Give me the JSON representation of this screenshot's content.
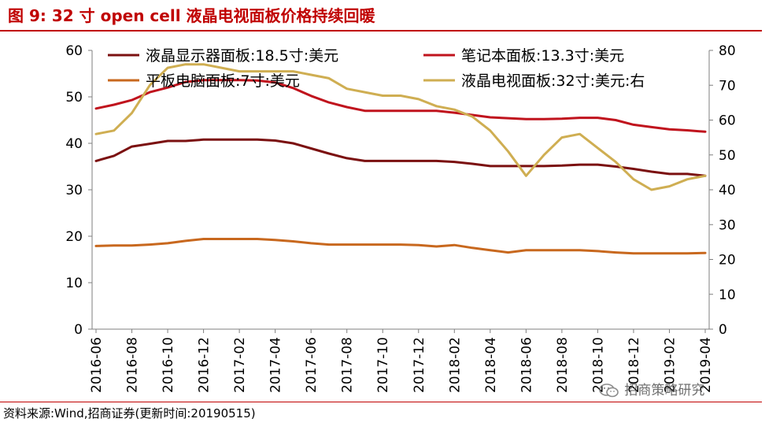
{
  "figure": {
    "title": "图 9:  32 寸 open cell 液晶电视面板价格持续回暖",
    "source": "资料来源:Wind,招商证券(更新时间:20190515)",
    "watermark": "招商策略研究",
    "watermark_icon": "wechat-icon"
  },
  "colors": {
    "title_red": "#c00000",
    "s1": "#7b1010",
    "s2": "#c0131d",
    "s3": "#c8681e",
    "s4": "#cfae52"
  },
  "chart_data": {
    "type": "line",
    "x": [
      "2016-06",
      "2016-07",
      "2016-08",
      "2016-09",
      "2016-10",
      "2016-11",
      "2016-12",
      "2017-01",
      "2017-02",
      "2017-03",
      "2017-04",
      "2017-05",
      "2017-06",
      "2017-07",
      "2017-08",
      "2017-09",
      "2017-10",
      "2017-11",
      "2017-12",
      "2018-01",
      "2018-02",
      "2018-03",
      "2018-04",
      "2018-05",
      "2018-06",
      "2018-07",
      "2018-08",
      "2018-09",
      "2018-10",
      "2018-11",
      "2018-12",
      "2019-01",
      "2019-02",
      "2019-03",
      "2019-04"
    ],
    "xticks": [
      "2016-06",
      "2016-08",
      "2016-10",
      "2016-12",
      "2017-02",
      "2017-04",
      "2017-06",
      "2017-08",
      "2017-10",
      "2017-12",
      "2018-02",
      "2018-04",
      "2018-06",
      "2018-08",
      "2018-10",
      "2018-12",
      "2019-02",
      "2019-04"
    ],
    "ylim_left": [
      0,
      60
    ],
    "yticks_left": [
      0,
      10,
      20,
      30,
      40,
      50,
      60
    ],
    "ylim_right": [
      0,
      80
    ],
    "yticks_right": [
      0,
      10,
      20,
      30,
      40,
      50,
      60,
      70,
      80
    ],
    "grid": false,
    "legend_position": "top",
    "series": [
      {
        "name": "液晶显示器面板:18.5寸:美元",
        "axis": "left",
        "color": "#7b1010",
        "values": [
          36.2,
          37.3,
          39.3,
          39.9,
          40.5,
          40.5,
          40.8,
          40.8,
          40.8,
          40.8,
          40.6,
          40.0,
          38.9,
          37.8,
          36.8,
          36.2,
          36.2,
          36.2,
          36.2,
          36.2,
          36.0,
          35.6,
          35.1,
          35.1,
          35.1,
          35.1,
          35.2,
          35.4,
          35.4,
          35.0,
          34.5,
          33.9,
          33.4,
          33.4,
          33.0
        ]
      },
      {
        "name": "笔记本面板:13.3寸:美元",
        "axis": "left",
        "color": "#c0131d",
        "values": [
          47.5,
          48.3,
          49.3,
          51.0,
          52.0,
          53.2,
          53.6,
          53.6,
          53.6,
          53.5,
          53.1,
          51.9,
          50.2,
          48.8,
          47.8,
          47.0,
          47.0,
          47.0,
          47.0,
          47.0,
          46.6,
          46.1,
          45.6,
          45.4,
          45.2,
          45.2,
          45.3,
          45.5,
          45.5,
          45.0,
          44.0,
          43.5,
          43.0,
          42.8,
          42.5
        ]
      },
      {
        "name": "平板电脑面板:7寸:美元",
        "axis": "left",
        "color": "#c8681e",
        "values": [
          17.9,
          18.0,
          18.0,
          18.2,
          18.5,
          19.0,
          19.4,
          19.4,
          19.4,
          19.4,
          19.2,
          18.9,
          18.5,
          18.2,
          18.2,
          18.2,
          18.2,
          18.2,
          18.1,
          17.8,
          18.1,
          17.5,
          17.0,
          16.5,
          17.0,
          17.0,
          17.0,
          17.0,
          16.8,
          16.5,
          16.3,
          16.3,
          16.3,
          16.3,
          16.4
        ]
      },
      {
        "name": "液晶电视面板:32寸:美元:右",
        "axis": "right",
        "color": "#cfae52",
        "values": [
          56,
          57,
          62,
          70,
          75,
          76,
          76,
          75,
          74,
          74,
          74,
          74,
          73,
          72,
          69,
          68,
          67,
          67,
          66,
          64,
          63,
          61,
          57,
          51,
          44,
          50,
          55,
          56,
          52,
          48,
          43,
          40,
          41,
          43,
          44
        ]
      }
    ]
  }
}
